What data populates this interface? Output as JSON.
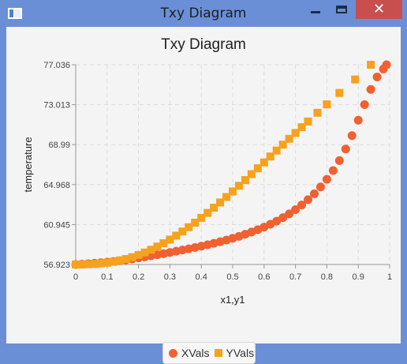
{
  "window": {
    "title": "Txy Diagram",
    "close_label": "✕"
  },
  "chart_data": {
    "type": "scatter",
    "title": "Txy Diagram",
    "xlabel": "x1,y1",
    "ylabel": "temperature",
    "xlim": [
      0,
      1
    ],
    "ylim": [
      56.923,
      77.036
    ],
    "x_ticks": [
      "0",
      "0.1",
      "0.2",
      "0.3",
      "0.4",
      "0.5",
      "0.6",
      "0.7",
      "0.8",
      "0.9",
      "1"
    ],
    "y_ticks": [
      "56.923",
      "60.945",
      "64.968",
      "68.99",
      "73.013",
      "77.036"
    ],
    "grid": true,
    "legend_position": "bottom",
    "series": [
      {
        "name": "XVals",
        "marker": "circle",
        "color": "#f06030",
        "points": [
          [
            0,
            56.923
          ],
          [
            0.02,
            56.96
          ],
          [
            0.04,
            57.0
          ],
          [
            0.06,
            57.05
          ],
          [
            0.08,
            57.1
          ],
          [
            0.1,
            57.16
          ],
          [
            0.12,
            57.23
          ],
          [
            0.14,
            57.31
          ],
          [
            0.16,
            57.4
          ],
          [
            0.18,
            57.49
          ],
          [
            0.2,
            57.59
          ],
          [
            0.22,
            57.69
          ],
          [
            0.24,
            57.8
          ],
          [
            0.26,
            57.91
          ],
          [
            0.28,
            58.02
          ],
          [
            0.3,
            58.14
          ],
          [
            0.32,
            58.26
          ],
          [
            0.34,
            58.38
          ],
          [
            0.36,
            58.5
          ],
          [
            0.38,
            58.63
          ],
          [
            0.4,
            58.77
          ],
          [
            0.42,
            58.91
          ],
          [
            0.44,
            59.06
          ],
          [
            0.46,
            59.22
          ],
          [
            0.48,
            59.39
          ],
          [
            0.5,
            59.57
          ],
          [
            0.52,
            59.76
          ],
          [
            0.54,
            59.97
          ],
          [
            0.56,
            60.19
          ],
          [
            0.58,
            60.43
          ],
          [
            0.6,
            60.69
          ],
          [
            0.62,
            60.98
          ],
          [
            0.64,
            61.29
          ],
          [
            0.66,
            61.64
          ],
          [
            0.68,
            62.02
          ],
          [
            0.7,
            62.45
          ],
          [
            0.72,
            62.92
          ],
          [
            0.74,
            63.45
          ],
          [
            0.76,
            64.05
          ],
          [
            0.78,
            64.73
          ],
          [
            0.8,
            65.5
          ],
          [
            0.82,
            66.38
          ],
          [
            0.84,
            67.39
          ],
          [
            0.86,
            68.55
          ],
          [
            0.88,
            69.9
          ],
          [
            0.9,
            71.45
          ],
          [
            0.92,
            73.02
          ],
          [
            0.94,
            74.55
          ],
          [
            0.96,
            75.8
          ],
          [
            0.98,
            76.6
          ],
          [
            0.99,
            77.036
          ]
        ]
      },
      {
        "name": "YVals",
        "marker": "square",
        "color": "#f5a21c",
        "points": [
          [
            0,
            56.923
          ],
          [
            0.02,
            56.93
          ],
          [
            0.04,
            56.95
          ],
          [
            0.06,
            56.98
          ],
          [
            0.08,
            57.03
          ],
          [
            0.1,
            57.1
          ],
          [
            0.12,
            57.2
          ],
          [
            0.14,
            57.33
          ],
          [
            0.16,
            57.48
          ],
          [
            0.18,
            57.66
          ],
          [
            0.2,
            57.88
          ],
          [
            0.22,
            58.13
          ],
          [
            0.24,
            58.41
          ],
          [
            0.26,
            58.73
          ],
          [
            0.28,
            59.07
          ],
          [
            0.3,
            59.43
          ],
          [
            0.32,
            59.83
          ],
          [
            0.34,
            60.25
          ],
          [
            0.36,
            60.68
          ],
          [
            0.38,
            61.14
          ],
          [
            0.4,
            61.62
          ],
          [
            0.42,
            62.12
          ],
          [
            0.44,
            62.64
          ],
          [
            0.46,
            63.17
          ],
          [
            0.48,
            63.72
          ],
          [
            0.5,
            64.28
          ],
          [
            0.52,
            64.85
          ],
          [
            0.54,
            65.43
          ],
          [
            0.56,
            66.02
          ],
          [
            0.58,
            66.61
          ],
          [
            0.6,
            67.2
          ],
          [
            0.62,
            67.8
          ],
          [
            0.64,
            68.4
          ],
          [
            0.66,
            68.99
          ],
          [
            0.68,
            69.58
          ],
          [
            0.7,
            70.17
          ],
          [
            0.72,
            70.75
          ],
          [
            0.74,
            71.32
          ],
          [
            0.77,
            72.2
          ],
          [
            0.8,
            73.05
          ],
          [
            0.84,
            74.2
          ],
          [
            0.89,
            75.55
          ],
          [
            0.94,
            77.036
          ]
        ]
      }
    ]
  }
}
